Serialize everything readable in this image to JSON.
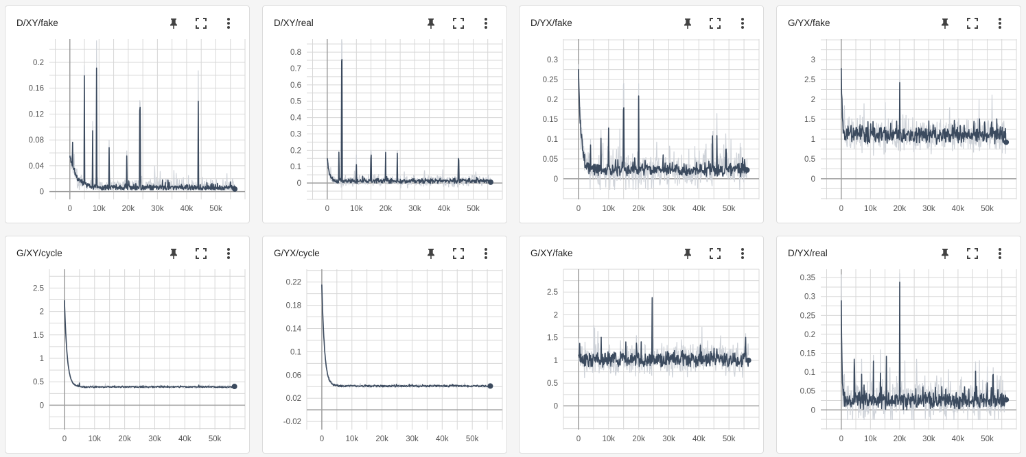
{
  "colors": {
    "smoothed": "#3b4a5e",
    "raw": "#cfd3d9",
    "grid": "#d7d7d7",
    "axis": "#9e9e9e",
    "tick": "#555555"
  },
  "icons": {
    "pin": "pin-icon",
    "fullscreen": "fullscreen-icon",
    "more": "more-vert-icon"
  },
  "chart_data": [
    {
      "title": "D/XY/fake",
      "type": "line",
      "xlim": [
        -7000,
        60000
      ],
      "ylim": [
        -0.012,
        0.236
      ],
      "xticks": [
        0,
        10000,
        20000,
        30000,
        40000,
        50000
      ],
      "xtick_labels": [
        "0",
        "10k",
        "20k",
        "30k",
        "40k",
        "50k"
      ],
      "yticks": [
        0,
        0.04,
        0.08,
        0.12,
        0.16,
        0.2
      ],
      "ytick_labels": [
        "0",
        "0.04",
        "0.08",
        "0.12",
        "0.16",
        "0.2"
      ],
      "x_last": 56500,
      "baseline": 0.006,
      "decay": 0.05,
      "tau": 2200,
      "noise": 0.004,
      "raw_noise": 0.012,
      "last_value": 0.004,
      "spikes": [
        [
          900,
          0.035
        ],
        [
          5000,
          0.165
        ],
        [
          7800,
          0.09
        ],
        [
          9200,
          0.185
        ],
        [
          13500,
          0.06
        ],
        [
          19500,
          0.05
        ],
        [
          24000,
          0.12
        ],
        [
          44000,
          0.13
        ]
      ],
      "seed": 1
    },
    {
      "title": "D/XY/real",
      "type": "line",
      "xlim": [
        -7000,
        60000
      ],
      "ylim": [
        -0.1,
        0.88
      ],
      "xticks": [
        0,
        10000,
        20000,
        30000,
        40000,
        50000
      ],
      "xtick_labels": [
        "0",
        "10k",
        "20k",
        "30k",
        "40k",
        "50k"
      ],
      "yticks": [
        0,
        0.1,
        0.2,
        0.3,
        0.4,
        0.5,
        0.6,
        0.7,
        0.8
      ],
      "ytick_labels": [
        "0",
        "0.1",
        "0.2",
        "0.3",
        "0.4",
        "0.5",
        "0.6",
        "0.7",
        "0.8"
      ],
      "x_last": 56000,
      "baseline": 0.012,
      "decay": 0.15,
      "tau": 700,
      "noise": 0.012,
      "raw_noise": 0.03,
      "last_value": 0.005,
      "spikes": [
        [
          4000,
          0.17
        ],
        [
          5000,
          0.73
        ],
        [
          10000,
          0.11
        ],
        [
          15000,
          0.15
        ],
        [
          20000,
          0.18
        ],
        [
          24000,
          0.17
        ],
        [
          45000,
          0.13
        ]
      ],
      "seed": 2
    },
    {
      "title": "D/YX/fake",
      "type": "line",
      "xlim": [
        -5000,
        60000
      ],
      "ylim": [
        -0.052,
        0.352
      ],
      "xticks": [
        0,
        10000,
        20000,
        30000,
        40000,
        50000
      ],
      "xtick_labels": [
        "0",
        "10k",
        "20k",
        "30k",
        "40k",
        "50k"
      ],
      "yticks": [
        0,
        0.05,
        0.1,
        0.15,
        0.2,
        0.25,
        0.3
      ],
      "ytick_labels": [
        "0",
        "0.05",
        "0.1",
        "0.15",
        "0.2",
        "0.25",
        "0.3"
      ],
      "x_last": 56000,
      "baseline": 0.022,
      "decay": 0.24,
      "tau": 900,
      "noise": 0.012,
      "raw_noise": 0.04,
      "last_value": 0.022,
      "spikes": [
        [
          4000,
          0.05
        ],
        [
          7500,
          0.08
        ],
        [
          10000,
          0.1
        ],
        [
          15000,
          0.15
        ],
        [
          20000,
          0.18
        ],
        [
          44500,
          0.07
        ],
        [
          46000,
          0.1
        ],
        [
          49000,
          0.06
        ]
      ],
      "seed": 3
    },
    {
      "title": "G/YX/fake",
      "type": "line",
      "xlim": [
        -7000,
        60000
      ],
      "ylim": [
        -0.52,
        3.52
      ],
      "xticks": [
        0,
        10000,
        20000,
        30000,
        40000,
        50000
      ],
      "xtick_labels": [
        "0",
        "10k",
        "20k",
        "30k",
        "40k",
        "50k"
      ],
      "yticks": [
        0,
        0.5,
        1,
        1.5,
        2,
        2.5,
        3
      ],
      "ytick_labels": [
        "0",
        "0.5",
        "1",
        "1.5",
        "2",
        "2.5",
        "3"
      ],
      "x_last": 56500,
      "baseline": 1.1,
      "decay": 1.6,
      "tau": 350,
      "noise": 0.18,
      "raw_noise": 0.35,
      "last_value": 0.92,
      "spikes": [
        [
          20000,
          1.3
        ],
        [
          6500,
          0.35
        ]
      ],
      "seed": 4
    },
    {
      "title": "G/XY/cycle",
      "type": "line",
      "xlim": [
        -5000,
        60000
      ],
      "ylim": [
        -0.52,
        2.9
      ],
      "xticks": [
        0,
        10000,
        20000,
        30000,
        40000,
        50000
      ],
      "xtick_labels": [
        "0",
        "10k",
        "20k",
        "30k",
        "40k",
        "50k"
      ],
      "yticks": [
        0,
        0.5,
        1,
        1.5,
        2,
        2.5
      ],
      "ytick_labels": [
        "0",
        "0.5",
        "1",
        "1.5",
        "2",
        "2.5"
      ],
      "x_last": 56500,
      "baseline": 0.39,
      "decay": 1.85,
      "tau": 900,
      "noise": 0.012,
      "raw_noise": 0.02,
      "last_value": 0.4,
      "spikes": [
        [
          5000,
          0.08
        ]
      ],
      "seed": 5
    },
    {
      "title": "G/YX/cycle",
      "type": "line",
      "xlim": [
        -5000,
        60000
      ],
      "ylim": [
        -0.034,
        0.242
      ],
      "xticks": [
        0,
        10000,
        20000,
        30000,
        40000,
        50000
      ],
      "xtick_labels": [
        "0",
        "10k",
        "20k",
        "30k",
        "40k",
        "50k"
      ],
      "yticks": [
        -0.02,
        0.02,
        0.06,
        0.1,
        0.14,
        0.18,
        0.22
      ],
      "ytick_labels": [
        "-0.02",
        "0.02",
        "0.06",
        "0.1",
        "0.14",
        "0.18",
        "0.22"
      ],
      "x_last": 56000,
      "baseline": 0.041,
      "decay": 0.175,
      "tau": 900,
      "noise": 0.0012,
      "raw_noise": 0.002,
      "last_value": 0.041,
      "spikes": [],
      "seed": 6
    },
    {
      "title": "G/XY/fake",
      "type": "line",
      "xlim": [
        -5000,
        60000
      ],
      "ylim": [
        -0.52,
        3.0
      ],
      "xticks": [
        0,
        10000,
        20000,
        30000,
        40000,
        50000
      ],
      "xtick_labels": [
        "0",
        "10k",
        "20k",
        "30k",
        "40k",
        "50k"
      ],
      "yticks": [
        0,
        0.5,
        1,
        1.5,
        2,
        2.5
      ],
      "ytick_labels": [
        "0",
        "0.5",
        "1",
        "1.5",
        "2",
        "2.5"
      ],
      "x_last": 56500,
      "baseline": 1.02,
      "decay": 0.15,
      "tau": 600,
      "noise": 0.14,
      "raw_noise": 0.3,
      "last_value": 1.0,
      "spikes": [
        [
          24500,
          1.4
        ],
        [
          7500,
          0.35
        ],
        [
          40500,
          0.3
        ],
        [
          55500,
          0.35
        ]
      ],
      "seed": 7
    },
    {
      "title": "D/YX/real",
      "type": "line",
      "xlim": [
        -7000,
        60000
      ],
      "ylim": [
        -0.052,
        0.372
      ],
      "xticks": [
        0,
        10000,
        20000,
        30000,
        40000,
        50000
      ],
      "xtick_labels": [
        "0",
        "10k",
        "20k",
        "30k",
        "40k",
        "50k"
      ],
      "yticks": [
        0,
        0.05,
        0.1,
        0.15,
        0.2,
        0.25,
        0.3,
        0.35
      ],
      "ytick_labels": [
        "0",
        "0.05",
        "0.1",
        "0.15",
        "0.2",
        "0.25",
        "0.3",
        "0.35"
      ],
      "x_last": 56500,
      "baseline": 0.025,
      "decay": 0.25,
      "tau": 300,
      "noise": 0.018,
      "raw_noise": 0.045,
      "last_value": 0.027,
      "spikes": [
        [
          20000,
          0.3
        ],
        [
          4500,
          0.1
        ],
        [
          7000,
          0.08
        ],
        [
          11000,
          0.1
        ],
        [
          13500,
          0.08
        ],
        [
          15500,
          0.1
        ],
        [
          46000,
          0.08
        ],
        [
          50000,
          0.06
        ],
        [
          52000,
          0.06
        ]
      ],
      "seed": 8
    }
  ]
}
